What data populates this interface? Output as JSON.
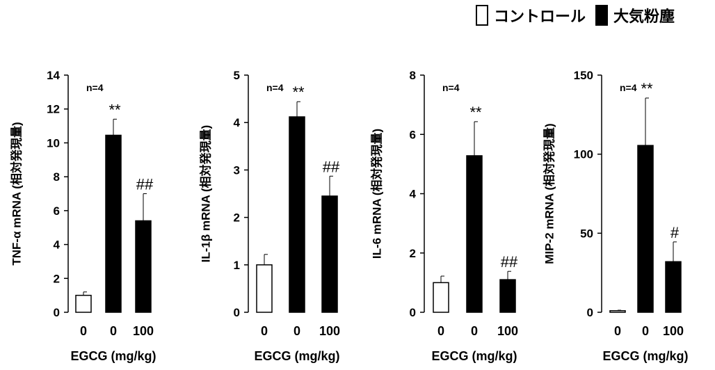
{
  "legend": {
    "control": {
      "label": "コントロール",
      "color": "#ffffff"
    },
    "exposed": {
      "label": "大気粉塵",
      "color": "#000000"
    }
  },
  "chart_data": [
    {
      "type": "bar",
      "ylabel": "TNF-α mRNA (相対発現量)",
      "xlabel": "EGCG (mg/kg)",
      "categories": [
        "0",
        "0",
        "100"
      ],
      "values": [
        1.0,
        10.45,
        5.4
      ],
      "errors": [
        0.2,
        0.95,
        1.6
      ],
      "fills": [
        "#ffffff",
        "#000000",
        "#000000"
      ],
      "annotations": [
        "",
        "**",
        "##"
      ],
      "note": "n=4",
      "ylim": [
        0,
        14
      ],
      "yticks": [
        0,
        2,
        4,
        6,
        8,
        10,
        12,
        14
      ]
    },
    {
      "type": "bar",
      "ylabel": "IL-1β mRNA (相対発現量)",
      "xlabel": "EGCG (mg/kg)",
      "categories": [
        "0",
        "0",
        "100"
      ],
      "values": [
        1.0,
        4.12,
        2.45
      ],
      "errors": [
        0.22,
        0.32,
        0.42
      ],
      "fills": [
        "#ffffff",
        "#000000",
        "#000000"
      ],
      "annotations": [
        "",
        "**",
        "##"
      ],
      "note": "n=4",
      "ylim": [
        0,
        5
      ],
      "yticks": [
        0,
        1,
        2,
        3,
        4,
        5
      ]
    },
    {
      "type": "bar",
      "ylabel": "IL-6 mRNA (相対発現量)",
      "xlabel": "EGCG (mg/kg)",
      "categories": [
        "0",
        "0",
        "100"
      ],
      "values": [
        1.0,
        5.28,
        1.1
      ],
      "errors": [
        0.22,
        1.15,
        0.28
      ],
      "fills": [
        "#ffffff",
        "#000000",
        "#000000"
      ],
      "annotations": [
        "",
        "**",
        "##"
      ],
      "note": "n=4",
      "ylim": [
        0,
        8
      ],
      "yticks": [
        0,
        2,
        4,
        6,
        8
      ]
    },
    {
      "type": "bar",
      "ylabel": "MIP-2 mRNA (相対発現量)",
      "xlabel": "EGCG (mg/kg)",
      "categories": [
        "0",
        "0",
        "100"
      ],
      "values": [
        1.0,
        105.5,
        32.0
      ],
      "errors": [
        0.3,
        30.0,
        12.5
      ],
      "fills": [
        "#ffffff",
        "#000000",
        "#000000"
      ],
      "annotations": [
        "",
        "**",
        "#"
      ],
      "note": "n=4",
      "ylim": [
        0,
        150
      ],
      "yticks": [
        0,
        50,
        100,
        150
      ]
    }
  ]
}
